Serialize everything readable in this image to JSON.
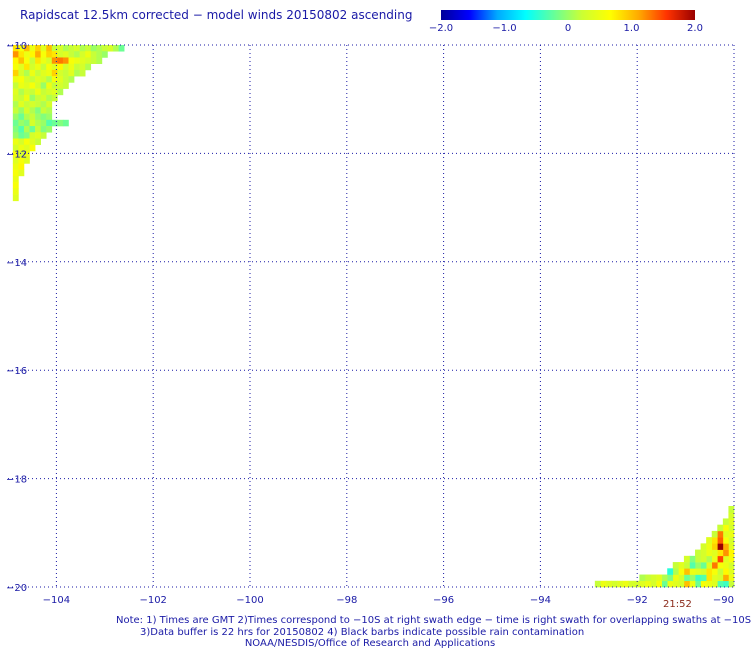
{
  "title": "Rapidscat 12.5km corrected − model winds 20150802 ascending",
  "colorbar": {
    "ticks": [
      "−2.0",
      "−1.0",
      "0",
      "1.0",
      "2.0"
    ],
    "stops": [
      "#000099",
      "#0000ff",
      "#00aaff",
      "#00ffff",
      "#66ff99",
      "#ccff33",
      "#ffff00",
      "#ffaa00",
      "#ff3300",
      "#990000"
    ]
  },
  "chart_data": {
    "type": "heatmap",
    "xlim": [
      -105,
      -90
    ],
    "ylim": [
      -20,
      -10
    ],
    "xticks": [
      {
        "value": -104,
        "label": "−104"
      },
      {
        "value": -102,
        "label": "−102"
      },
      {
        "value": -100,
        "label": "−100"
      },
      {
        "value": -98,
        "label": "−98"
      },
      {
        "value": -96,
        "label": "−96"
      },
      {
        "value": -94,
        "label": "−94"
      },
      {
        "value": -92,
        "label": "−92"
      },
      {
        "value": -90,
        "label": "−90"
      }
    ],
    "yticks": [
      {
        "value": -10,
        "label": "−10"
      },
      {
        "value": -12,
        "label": "−12"
      },
      {
        "value": -14,
        "label": "−14"
      },
      {
        "value": -16,
        "label": "−16"
      },
      {
        "value": -18,
        "label": "−18"
      },
      {
        "value": -20,
        "label": "−20"
      }
    ],
    "grid": true,
    "cell_deg": 0.115,
    "swaths": [
      {
        "lon0": -104.9,
        "lat0": -10.0,
        "rows": [
          [
            0.8,
            0.6,
            1.0,
            0.5,
            0.9,
            0.4,
            1.0,
            0.2,
            0.3,
            0.1,
            0.2,
            0.3,
            0.1,
            0.2,
            0.0,
            0.1,
            0.2,
            0.3,
            0.1,
            -0.2
          ],
          [
            1.2,
            0.8,
            0.5,
            0.7,
            1.1,
            0.6,
            0.9,
            0.8,
            0.3,
            0.4,
            0.2,
            0.1,
            0.3,
            0.5,
            0.2,
            0.1,
            0.0
          ],
          [
            0.7,
            1.0,
            0.6,
            0.2,
            0.8,
            0.5,
            0.3,
            1.2,
            1.3,
            1.2,
            0.6,
            0.5,
            0.4,
            0.3,
            0.2,
            0.1
          ],
          [
            0.6,
            0.4,
            0.8,
            0.3,
            0.5,
            0.2,
            0.6,
            0.4,
            0.7,
            0.3,
            0.5,
            0.2,
            0.3,
            0.1
          ],
          [
            0.9,
            0.3,
            0.1,
            0.5,
            0.2,
            0.4,
            0.5,
            0.9,
            0.3,
            0.2,
            0.4,
            0.1,
            0.2
          ],
          [
            0.5,
            0.6,
            0.3,
            0.2,
            0.4,
            0.3,
            0.1,
            0.6,
            0.4,
            0.2,
            0.1
          ],
          [
            0.2,
            0.5,
            0.4,
            0.6,
            0.3,
            0.0,
            0.5,
            0.2,
            0.3,
            0.2
          ],
          [
            0.4,
            0.1,
            0.3,
            0.2,
            0.5,
            0.2,
            0.3,
            0.4,
            0.1
          ],
          [
            0.3,
            0.2,
            0.5,
            0.0,
            0.2,
            0.3,
            0.1,
            0.2
          ],
          [
            0.1,
            0.4,
            0.2,
            0.3,
            0.2,
            0.1,
            0.3
          ],
          [
            0.2,
            0.0,
            0.3,
            0.1,
            -0.1,
            0.2,
            0.1
          ],
          [
            0.0,
            -0.2,
            0.1,
            0.2,
            0.0,
            -0.1,
            0.0
          ],
          [
            -0.2,
            0.0,
            -0.1,
            0.3,
            0.1,
            0.0,
            -0.3,
            -0.2,
            -0.1,
            -0.2
          ],
          [
            -0.1,
            -0.3,
            0.1,
            -0.2,
            0.2,
            -0.1,
            0.0
          ],
          [
            0.0,
            -0.2,
            -0.1,
            0.3,
            0.4,
            0.2
          ],
          [
            0.5,
            0.3,
            0.6,
            0.4,
            0.2
          ],
          [
            0.3,
            0.5,
            0.4,
            0.6
          ],
          [
            0.6,
            0.3,
            0.5
          ],
          [
            0.4,
            0.6,
            0.4
          ],
          [
            0.5,
            0.7
          ],
          [
            0.6,
            0.4
          ],
          [
            0.5
          ],
          [
            0.6
          ],
          [
            0.5
          ],
          [
            0.4
          ]
        ]
      },
      {
        "lon0": -90.0,
        "lat0": -20.0,
        "from_right": true,
        "rows_from_bottom": [
          [
            0.2,
            -0.4,
            -0.3,
            0.4,
            0.5,
            0.6,
            -0.2,
            0.5,
            1.0,
            0.3,
            0.4,
            0.5,
            -0.2,
            0.6,
            0.3,
            0.5,
            0.4,
            0.3,
            0.3,
            0.5,
            0.4,
            0.3,
            0.4,
            0.5,
            0.2
          ],
          [
            0.5,
            1.1,
            0.3,
            0.4,
            0.8,
            -0.3,
            -0.4,
            0.0,
            -0.2,
            0.3,
            0.5,
            -0.1,
            0.1,
            0.4,
            0.3,
            0.2,
            0.1
          ],
          [
            0.4,
            0.7,
            0.2,
            0.6,
            0.8,
            0.3,
            0.4,
            0.5,
            1.0,
            0.6,
            0.1,
            -0.5
          ],
          [
            0.3,
            0.5,
            0.6,
            1.3,
            0.4,
            -0.2,
            0.0,
            -0.3,
            0.2,
            0.4,
            0.2
          ],
          [
            0.6,
            0.4,
            1.5,
            0.5,
            0.1,
            0.3,
            0.2,
            -0.1,
            0.3
          ],
          [
            0.7,
            1.2,
            0.8,
            0.4,
            0.5,
            0.3,
            0.2
          ],
          [
            0.4,
            1.1,
            2.2,
            0.9,
            0.5,
            0.3
          ],
          [
            0.3,
            0.6,
            1.4,
            0.8,
            0.4
          ],
          [
            0.5,
            0.4,
            1.3,
            0.2
          ],
          [
            0.3,
            0.6,
            0.2
          ],
          [
            0.4,
            0.2
          ],
          [
            0.3
          ],
          [
            0.2
          ]
        ]
      }
    ]
  },
  "timestamp": "21:52",
  "notes": {
    "line1": "Note: 1) Times are GMT 2)Times correspond to −10S at right swath edge − time is right swath for overlapping swaths at −10S",
    "line2": "3)Data buffer is 22 hrs for 20150802 4) Black barbs indicate possible rain contamination",
    "line3": "NOAA/NESDIS/Office of Research and Applications"
  }
}
